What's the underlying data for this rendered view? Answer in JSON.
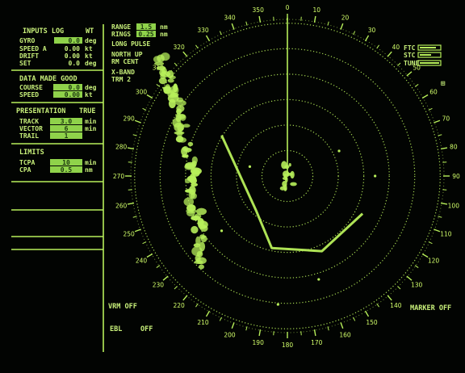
{
  "colors": {
    "phosphor": "#b7ef5a",
    "background": "#020402",
    "field_box": "#8fd24a"
  },
  "inputs_panel": {
    "title": "INPUTS LOG",
    "mode": "WT",
    "rows": [
      {
        "label": "GYRO",
        "value": "0.0",
        "unit": "deg",
        "boxed": true
      },
      {
        "label": "SPEED A",
        "value": "0.00",
        "unit": "kt",
        "boxed": false
      },
      {
        "label": "DRIFT",
        "value": "0.00",
        "unit": "kt",
        "boxed": false
      },
      {
        "label": "SET",
        "value": "0.0",
        "unit": "deg",
        "boxed": false
      }
    ]
  },
  "data_made_good": {
    "title": "DATA MADE GOOD",
    "rows": [
      {
        "label": "COURSE",
        "value": "0.0",
        "unit": "deg"
      },
      {
        "label": "SPEED",
        "value": "0.00",
        "unit": "kt"
      }
    ]
  },
  "presentation": {
    "title": "PRESENTATION",
    "mode": "TRUE",
    "rows": [
      {
        "label": "TRACK",
        "value": "3.0",
        "unit": "min"
      },
      {
        "label": "VECTOR",
        "value": "6",
        "unit": "min"
      },
      {
        "label": "TRAIL",
        "value": "1",
        "unit": ""
      }
    ]
  },
  "limits": {
    "title": "LIMITS",
    "rows": [
      {
        "label": "TCPA",
        "value": "10",
        "unit": "min"
      },
      {
        "label": "CPA",
        "value": "0.5",
        "unit": "nm"
      }
    ]
  },
  "range_panel": {
    "range_label": "RANGE",
    "range_value": "1.5",
    "range_unit": "nm",
    "rings_label": "RINGS",
    "rings_value": "0.25",
    "rings_unit": "nm",
    "pulse": "LONG PULSE",
    "orientation": "NORTH UP",
    "centering": "RM CENT",
    "band": "X-BAND",
    "transceiver": "TRM 2"
  },
  "controls": {
    "ftc": "FTC",
    "stc": "STC",
    "tune": "TUNE",
    "vrm": "VRM OFF",
    "ebl": "EBL",
    "ebl_state": "OFF",
    "marker": "MARKER OFF",
    "gain_glyph": "⊞"
  },
  "radar": {
    "ring_count": 6,
    "heading_deg": 0,
    "bearing_labels": [
      "0",
      "10",
      "20",
      "30",
      "40",
      "50",
      "60",
      "70",
      "80",
      "90",
      "100",
      "110",
      "120",
      "130",
      "140",
      "150",
      "160",
      "170",
      "180",
      "190",
      "200",
      "210",
      "220",
      "230",
      "240",
      "250",
      "260",
      "270",
      "280",
      "290",
      "300",
      "310",
      "320",
      "330",
      "340",
      "350"
    ],
    "track_trail_points": [
      [
        -0.2,
        0.22
      ],
      [
        -0.1,
        0.46
      ],
      [
        0.22,
        0.48
      ],
      [
        0.48,
        0.24
      ]
    ]
  }
}
